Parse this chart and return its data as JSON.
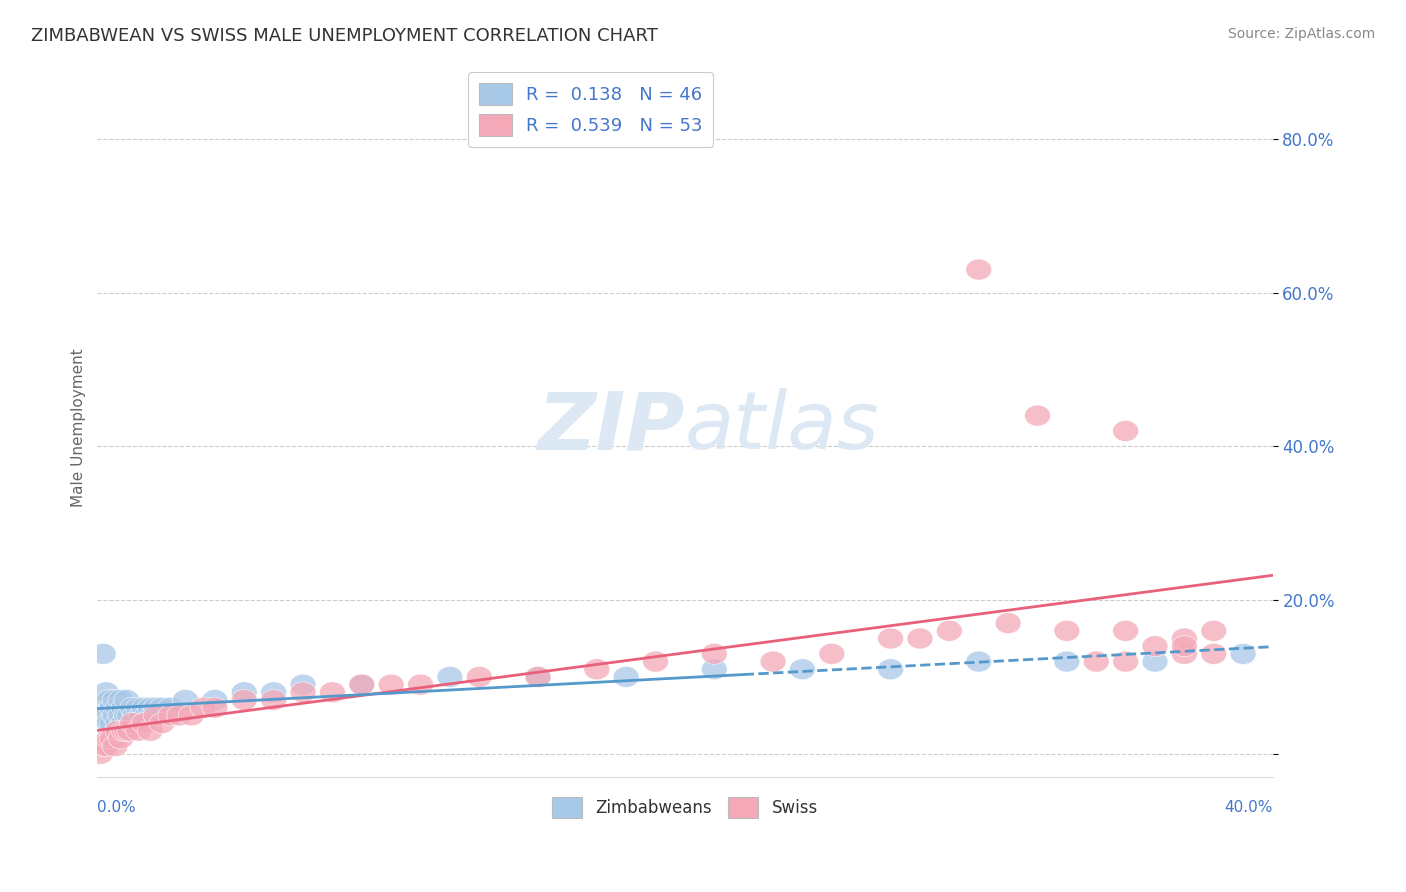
{
  "title": "ZIMBABWEAN VS SWISS MALE UNEMPLOYMENT CORRELATION CHART",
  "source": "Source: ZipAtlas.com",
  "ylabel": "Male Unemployment",
  "y_ticks": [
    0.0,
    0.2,
    0.4,
    0.6,
    0.8
  ],
  "y_tick_labels": [
    "",
    "20.0%",
    "40.0%",
    "60.0%",
    "80.0%"
  ],
  "xlim": [
    0.0,
    0.4
  ],
  "ylim": [
    -0.03,
    0.88
  ],
  "zimbabwean_R": 0.138,
  "zimbabwean_N": 46,
  "swiss_R": 0.539,
  "swiss_N": 53,
  "zimbabwean_color": "#a8c8e8",
  "swiss_color": "#f4a8b8",
  "zimbabwean_line_color": "#5599cc",
  "swiss_line_color": "#e8607a",
  "watermark_color": "#dce8f4",
  "background_color": "#ffffff",
  "grid_color": "#cccccc",
  "title_color": "#333333",
  "tick_color": "#4477cc",
  "zimbabwean_scatter_x": [
    0.001,
    0.002,
    0.003,
    0.003,
    0.004,
    0.004,
    0.005,
    0.005,
    0.006,
    0.006,
    0.007,
    0.007,
    0.008,
    0.008,
    0.009,
    0.009,
    0.01,
    0.01,
    0.011,
    0.012,
    0.013,
    0.014,
    0.015,
    0.016,
    0.017,
    0.018,
    0.019,
    0.02,
    0.022,
    0.025,
    0.03,
    0.04,
    0.05,
    0.06,
    0.07,
    0.09,
    0.12,
    0.15,
    0.18,
    0.21,
    0.24,
    0.27,
    0.3,
    0.33,
    0.36,
    0.39
  ],
  "zimbabwean_scatter_y": [
    0.05,
    0.13,
    0.05,
    0.08,
    0.04,
    0.07,
    0.04,
    0.06,
    0.05,
    0.07,
    0.04,
    0.06,
    0.05,
    0.07,
    0.04,
    0.06,
    0.05,
    0.07,
    0.05,
    0.06,
    0.05,
    0.06,
    0.05,
    0.06,
    0.05,
    0.06,
    0.05,
    0.06,
    0.06,
    0.06,
    0.07,
    0.07,
    0.08,
    0.08,
    0.09,
    0.09,
    0.1,
    0.1,
    0.1,
    0.11,
    0.11,
    0.11,
    0.12,
    0.12,
    0.12,
    0.13
  ],
  "swiss_scatter_x": [
    0.001,
    0.002,
    0.003,
    0.004,
    0.005,
    0.006,
    0.007,
    0.008,
    0.009,
    0.01,
    0.011,
    0.012,
    0.014,
    0.016,
    0.018,
    0.02,
    0.022,
    0.025,
    0.028,
    0.032,
    0.036,
    0.04,
    0.05,
    0.06,
    0.07,
    0.08,
    0.09,
    0.1,
    0.11,
    0.13,
    0.15,
    0.17,
    0.19,
    0.21,
    0.23,
    0.25,
    0.27,
    0.29,
    0.31,
    0.33,
    0.35,
    0.37,
    0.28,
    0.3,
    0.32,
    0.34,
    0.35,
    0.37,
    0.38,
    0.35,
    0.36,
    0.37,
    0.38
  ],
  "swiss_scatter_y": [
    0.0,
    0.01,
    0.01,
    0.02,
    0.02,
    0.01,
    0.03,
    0.02,
    0.03,
    0.03,
    0.03,
    0.04,
    0.03,
    0.04,
    0.03,
    0.05,
    0.04,
    0.05,
    0.05,
    0.05,
    0.06,
    0.06,
    0.07,
    0.07,
    0.08,
    0.08,
    0.09,
    0.09,
    0.09,
    0.1,
    0.1,
    0.11,
    0.12,
    0.13,
    0.12,
    0.13,
    0.15,
    0.16,
    0.17,
    0.16,
    0.12,
    0.13,
    0.15,
    0.63,
    0.44,
    0.12,
    0.42,
    0.15,
    0.13,
    0.16,
    0.14,
    0.14,
    0.16
  ]
}
